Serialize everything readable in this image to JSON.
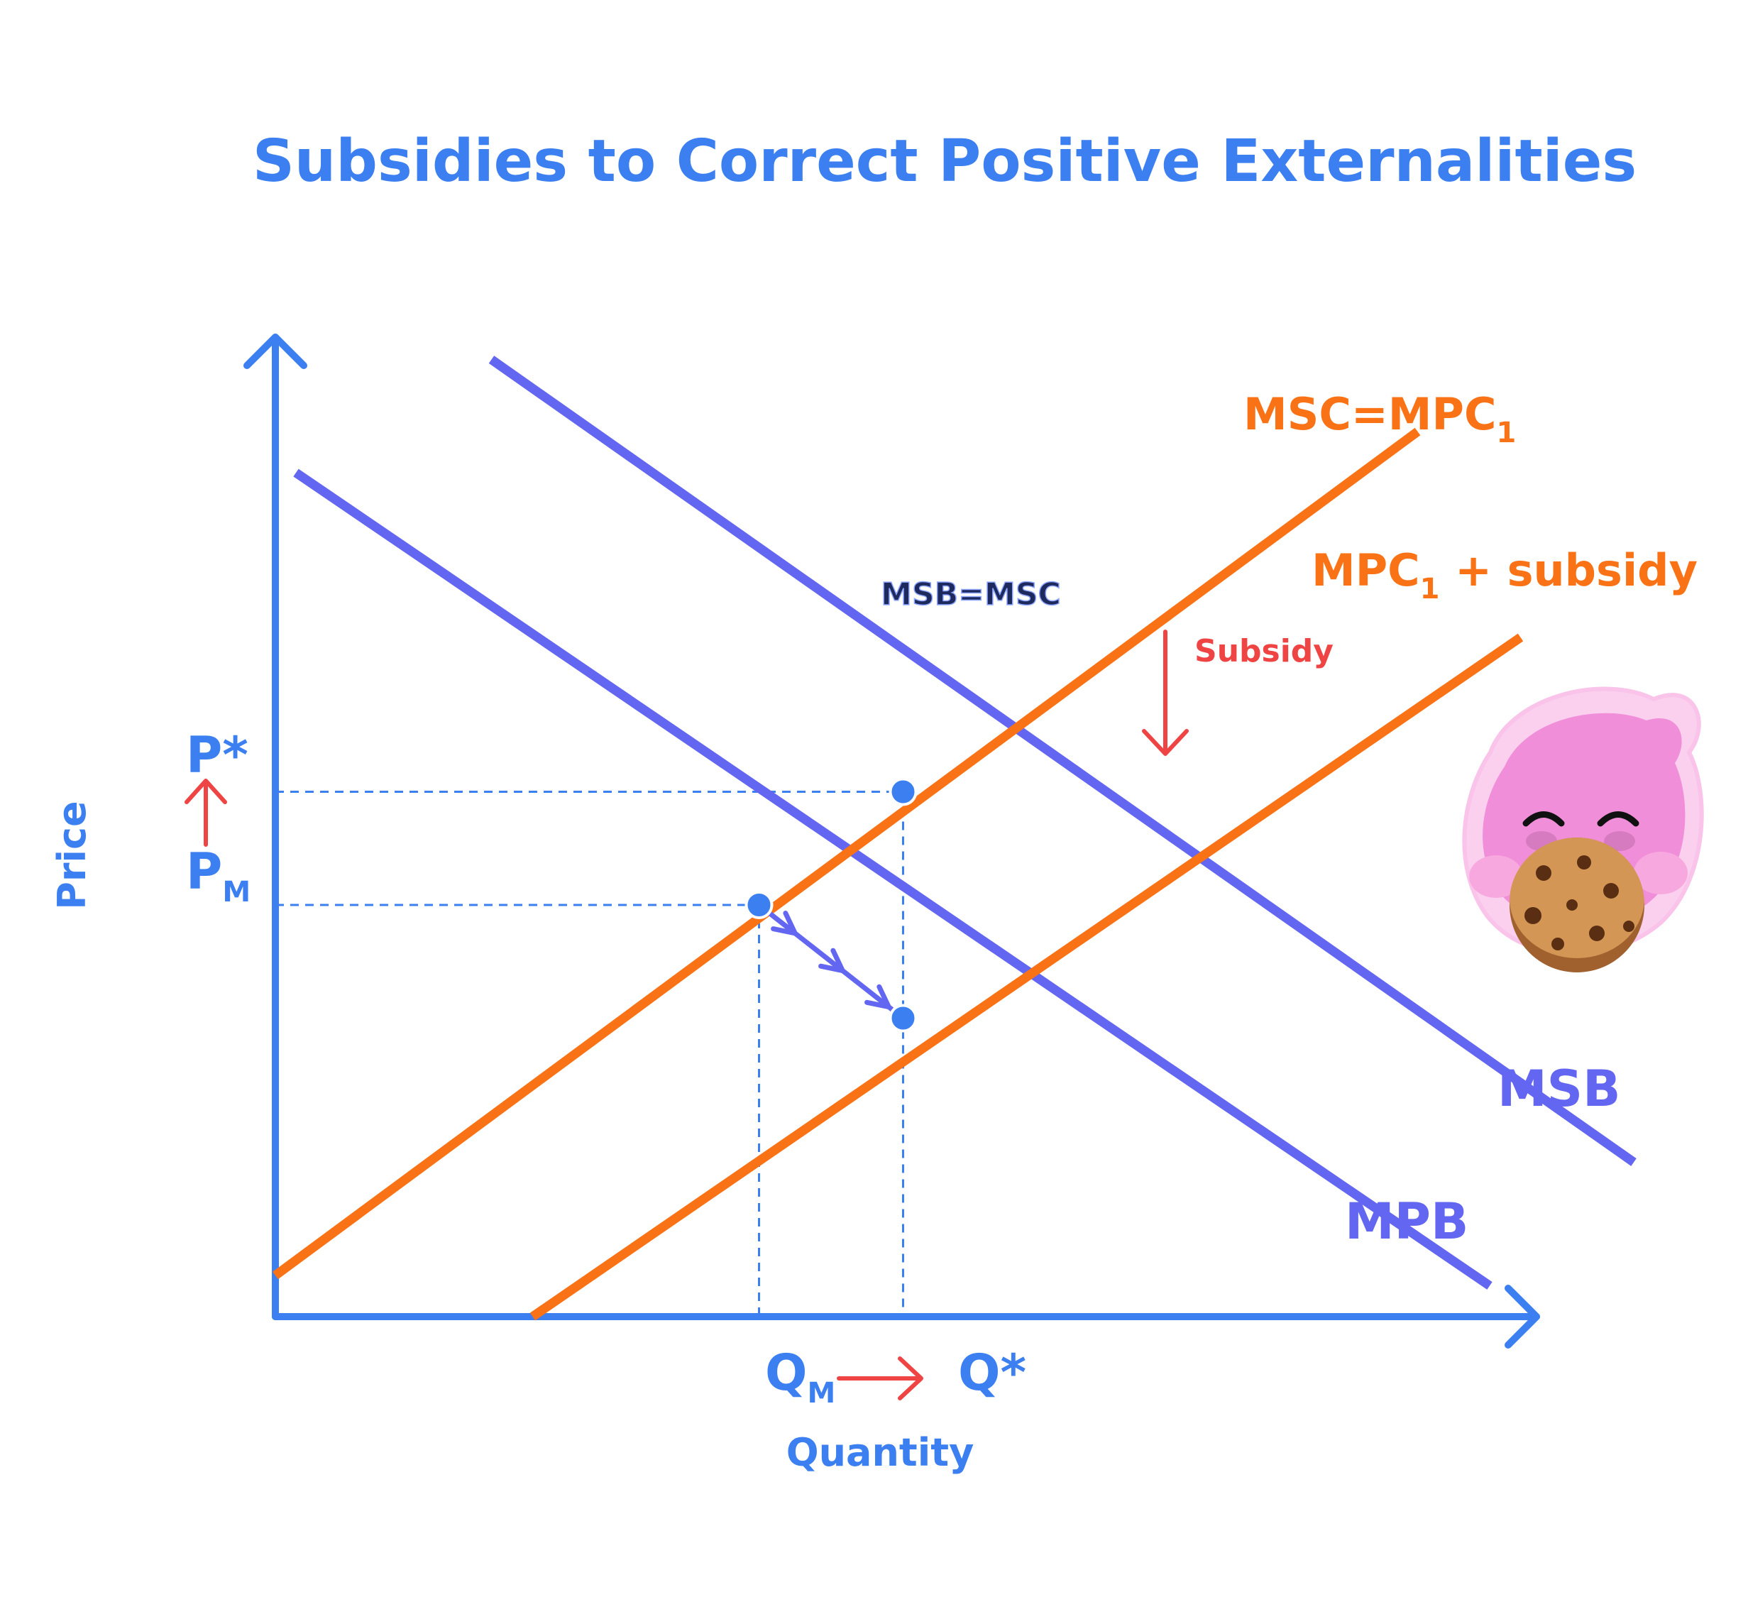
{
  "colors": {
    "axis": "#3b7ff0",
    "benefit": "#6366f1",
    "cost": "#f97316",
    "accent_arrow": "#ef4444",
    "annotation_dark": "#1e2a5e"
  },
  "chart_data": {
    "type": "line",
    "title": "Subsidies to Correct Positive Externalities",
    "xlabel": "Quantity",
    "ylabel": "Price",
    "grid": false,
    "series": [
      {
        "name": "MSB",
        "kind": "demand",
        "points": [
          [
            2.1,
            9.3
          ],
          [
            13.2,
            1.5
          ]
        ]
      },
      {
        "name": "MPB",
        "kind": "demand",
        "points": [
          [
            0.2,
            8.2
          ],
          [
            11.8,
            0.3
          ]
        ]
      },
      {
        "name": "MSC=MPC",
        "name_subscript": "1",
        "kind": "supply",
        "points": [
          [
            0.0,
            0.4
          ],
          [
            11.1,
            8.6
          ]
        ]
      },
      {
        "name": "MPC",
        "name_subscript": "1",
        "name_suffix": " + subsidy",
        "kind": "supply",
        "points": [
          [
            2.5,
            0.0
          ],
          [
            12.1,
            6.6
          ]
        ]
      }
    ],
    "equilibria": [
      {
        "id": "market",
        "x": 4.7,
        "y": 4.0
      },
      {
        "id": "optimum",
        "x": 6.1,
        "y": 5.1
      },
      {
        "id": "subsidized",
        "x": 6.1,
        "y": 2.9
      }
    ],
    "x_tick_labels": [
      {
        "text": "Q",
        "subscript": "M",
        "at": 4.7
      },
      {
        "text": "Q*",
        "at": 6.1
      }
    ],
    "y_tick_labels": [
      {
        "text": "P*",
        "at": 5.1
      },
      {
        "text": "P",
        "subscript": "M",
        "at": 4.0
      }
    ],
    "annotations": {
      "optimum_label": "MSB=MSC",
      "subsidy_label": "Subsidy"
    },
    "xlim": [
      0,
      14
    ],
    "ylim": [
      0,
      10
    ]
  }
}
